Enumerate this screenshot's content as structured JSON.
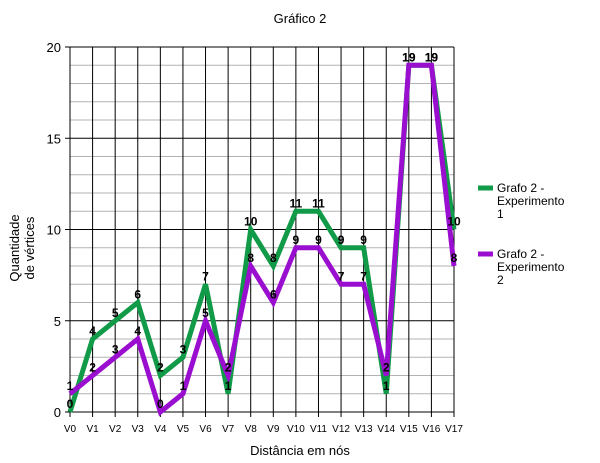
{
  "chart_data": {
    "type": "line",
    "title": "Gráfico 2",
    "xlabel": "Distância em nós",
    "ylabel": [
      "Quantidade",
      "de vértices"
    ],
    "categories": [
      "V0",
      "V1",
      "V2",
      "V3",
      "V4",
      "V5",
      "V6",
      "V7",
      "V8",
      "V9",
      "V10",
      "V11",
      "V12",
      "V13",
      "V14",
      "V15",
      "V16",
      "V17"
    ],
    "ylim": [
      0,
      20
    ],
    "yticks": [
      "0",
      "5",
      "10",
      "15",
      "20"
    ],
    "grid": true,
    "legend_position": "right",
    "series": [
      {
        "name": [
          "Grafo 2 -",
          "Experimento",
          "1"
        ],
        "color": "#119a47",
        "values": [
          0,
          4,
          5,
          6,
          2,
          3,
          7,
          1,
          10,
          8,
          11,
          11,
          9,
          9,
          1,
          19,
          19,
          10
        ]
      },
      {
        "name": [
          "Grafo 2 -",
          "Experimento",
          "2"
        ],
        "color": "#9a0fcf",
        "values": [
          1,
          2,
          3,
          4,
          0,
          1,
          5,
          2,
          8,
          6,
          9,
          9,
          7,
          7,
          2,
          19,
          19,
          8
        ]
      }
    ]
  }
}
